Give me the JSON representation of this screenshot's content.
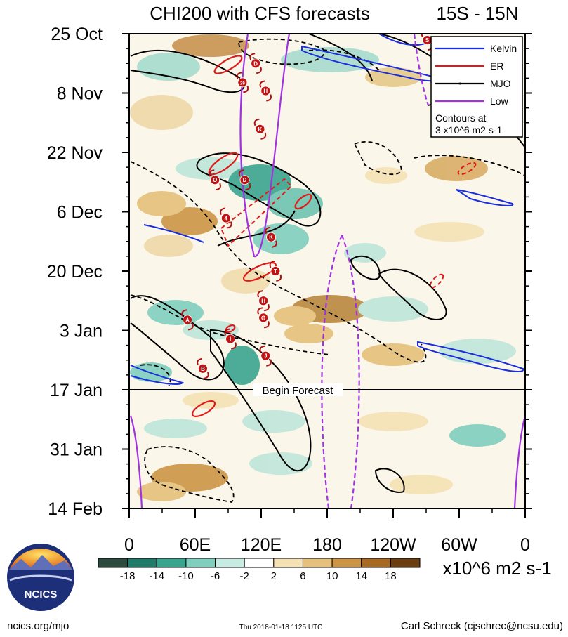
{
  "chart_data": {
    "type": "heatmap",
    "title": "CHI200 with CFS forecasts",
    "region_label": "15S - 15N",
    "y_ticks": [
      "25 Oct",
      "8 Nov",
      "22 Nov",
      "6 Dec",
      "20 Dec",
      "3 Jan",
      "17 Jan",
      "31 Jan",
      "14 Feb"
    ],
    "x_ticks": [
      "0",
      "60E",
      "120E",
      "180",
      "120W",
      "60W",
      "0"
    ],
    "x_range_deg": [
      0,
      360
    ],
    "y_range_days": [
      0,
      112
    ],
    "forecast_start_day": 84,
    "forecast_label": "Begin Forecast",
    "colorbar": {
      "ticks": [
        "-18",
        "-14",
        "-10",
        "-6",
        "-2",
        "2",
        "6",
        "10",
        "14",
        "18"
      ],
      "colors": [
        "#2d4a3e",
        "#1f7a6a",
        "#3aa58f",
        "#7fcfbf",
        "#c8ece2",
        "#ffffff",
        "#f5e2b4",
        "#e5c07a",
        "#cc9545",
        "#a86a22",
        "#6a3e10"
      ],
      "units": "x10^6 m2 s-1"
    },
    "legend": {
      "entries": [
        {
          "name": "Kelvin",
          "color": "#1a2ee0"
        },
        {
          "name": "ER",
          "color": "#e01a1a"
        },
        {
          "name": "MJO",
          "color": "#000000"
        },
        {
          "name": "Low",
          "color": "#a033e0"
        }
      ],
      "note_line1": "Contours at",
      "note_line2": "3 x10^6 m2 s-1"
    },
    "storms": [
      {
        "label": "S",
        "lon": 271,
        "day": 1.5
      },
      {
        "label": "D",
        "lon": 115,
        "day": 7
      },
      {
        "label": "29",
        "lon": 103,
        "day": 11.5
      },
      {
        "label": "H",
        "lon": 124,
        "day": 13.5
      },
      {
        "label": "K",
        "lon": 119,
        "day": 22.5
      },
      {
        "label": "O",
        "lon": 78,
        "day": 34.5
      },
      {
        "label": "D",
        "lon": 105,
        "day": 34.5
      },
      {
        "label": "4",
        "lon": 88,
        "day": 43.5
      },
      {
        "label": "K",
        "lon": 129,
        "day": 48
      },
      {
        "label": "T",
        "lon": 133,
        "day": 56
      },
      {
        "label": "H",
        "lon": 122,
        "day": 63
      },
      {
        "label": "A",
        "lon": 53,
        "day": 67.5
      },
      {
        "label": "G",
        "lon": 122,
        "day": 67
      },
      {
        "label": "I",
        "lon": 92,
        "day": 72
      },
      {
        "label": "J",
        "lon": 124,
        "day": 76
      },
      {
        "label": "B",
        "lon": 67,
        "day": 79
      }
    ]
  },
  "footer": {
    "logo_text": "NCICS",
    "url": "ncics.org/mjo",
    "timestamp": "Thu 2018-01-18 1125 UTC",
    "author": "Carl Schreck (cjschrec@ncsu.edu)"
  }
}
